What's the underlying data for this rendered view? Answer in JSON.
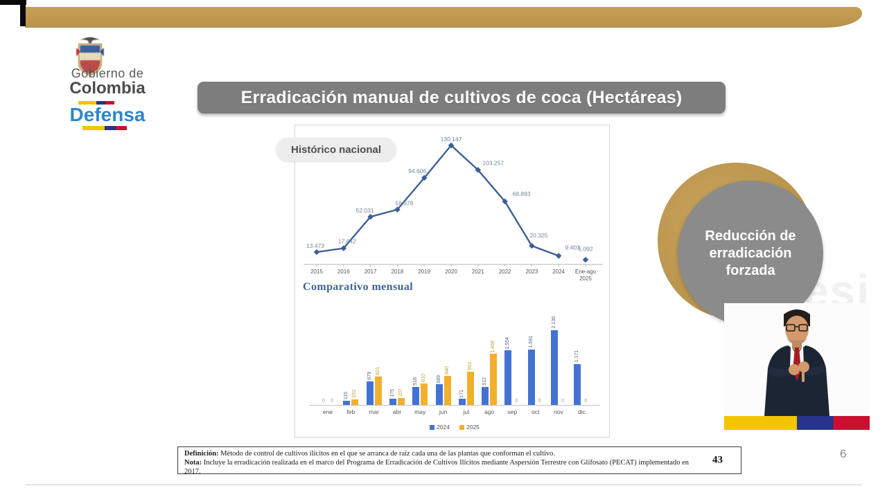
{
  "title": "Erradicación manual de cultivos de coca (Hectáreas)",
  "logo": {
    "line1": "Gobierno de",
    "line2": "Colombia",
    "line3": "Defensa"
  },
  "badge": {
    "lines": [
      "Reducción de",
      "erradicación",
      "forzada"
    ]
  },
  "watermark": "Presi",
  "footnote": {
    "definition_label": "Definición:",
    "definition_text": " Método de control de cultivos ilícitos en el que se arranca de raíz cada una de las plantas que conforman el cultivo.",
    "note_label": "Nota:",
    "note_text": " Incluye la erradicación realizada en el marco del Programa de Erradicación de Cultivos Ilícitos mediante Aspersión Terrestre con Glifosato (PECAT) implementado en 2017.",
    "page_ref": "43"
  },
  "slide": {
    "page_number": "6"
  },
  "colors": {
    "gold": "#bf9a4e",
    "title_bar_gray": "#7d7d7d",
    "circle_gray": "#8b8b8b",
    "line_blue": "#3c5f94",
    "bar_blue": "#4472d4",
    "bar_yellow": "#f2b02c",
    "defensa_blue": "#2f86c8"
  },
  "chart_data": [
    {
      "type": "line",
      "title": "Histórico nacional",
      "categories": [
        "2015",
        "2016",
        "2017",
        "2018",
        "2019",
        "2020",
        "2021",
        "2022",
        "2023",
        "2024",
        "Ene-ago 2025"
      ],
      "values": [
        13473,
        17642,
        52031,
        59978,
        94606,
        130147,
        103257,
        68893,
        20325,
        9403,
        5092
      ],
      "labels": [
        "13.473",
        "17.642",
        "52.031",
        "59.978",
        "94.606",
        "130.147",
        "103.257",
        "68.893",
        "20.325",
        "9.403",
        "5.092"
      ],
      "xlabel": "",
      "ylabel": "",
      "ylim": [
        0,
        140000
      ],
      "grid": false,
      "isolated_last_point": true,
      "line_color": "#3c5f94",
      "label_color": "#72859e"
    },
    {
      "type": "bar",
      "title": "Comparativo mensual",
      "categories": [
        "ene",
        "feb",
        "mar",
        "abr",
        "may",
        "jun",
        "jul",
        "ago",
        "sep",
        "oct",
        "nov",
        "dic"
      ],
      "series": [
        {
          "name": "2024",
          "color": "#4472d4",
          "label_color": "#4f618a",
          "values": [
            0,
            115,
            679,
            175,
            518,
            589,
            171,
            512,
            1554,
            1591,
            2136,
            1171
          ],
          "labels": [
            "0",
            "115",
            "679",
            "175",
            "518",
            "589",
            "171",
            "512",
            "1.554",
            "1.591",
            "2.136",
            "1.171"
          ]
        },
        {
          "name": "2025",
          "color": "#f2b02c",
          "label_color": "#c79a25",
          "values": [
            0,
            162,
            821,
            207,
            610,
            840,
            953,
            1458,
            0,
            0,
            0,
            0
          ],
          "labels": [
            "0",
            "162",
            "821",
            "207",
            "610",
            "840",
            "953",
            "1.458",
            "0",
            "0",
            "0",
            "0"
          ]
        }
      ],
      "ylim": [
        0,
        2300
      ],
      "grid": false,
      "legend_position": "bottom"
    }
  ]
}
